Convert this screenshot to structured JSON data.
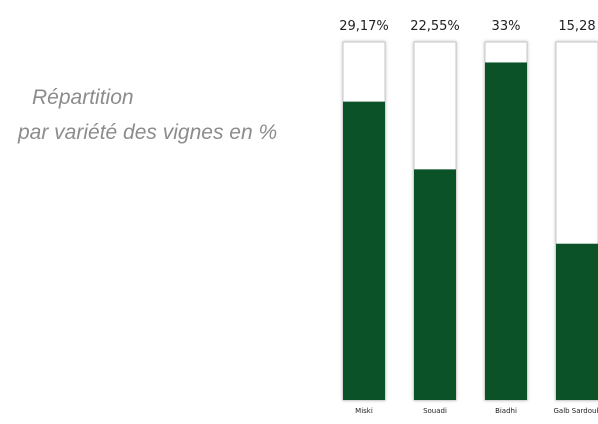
{
  "chart_data": {
    "type": "bar",
    "title": [
      "Répartition",
      "par variété des vignes en %"
    ],
    "categories": [
      "Miski",
      "Souadi",
      "Biadhi",
      "Galb Sardouk"
    ],
    "values": [
      29.17,
      22.55,
      33,
      15.28
    ],
    "value_labels": [
      "29,17%",
      "22,55%",
      "33%",
      "15,28"
    ],
    "color": "#0b5229",
    "ylim": [
      0,
      35
    ]
  }
}
